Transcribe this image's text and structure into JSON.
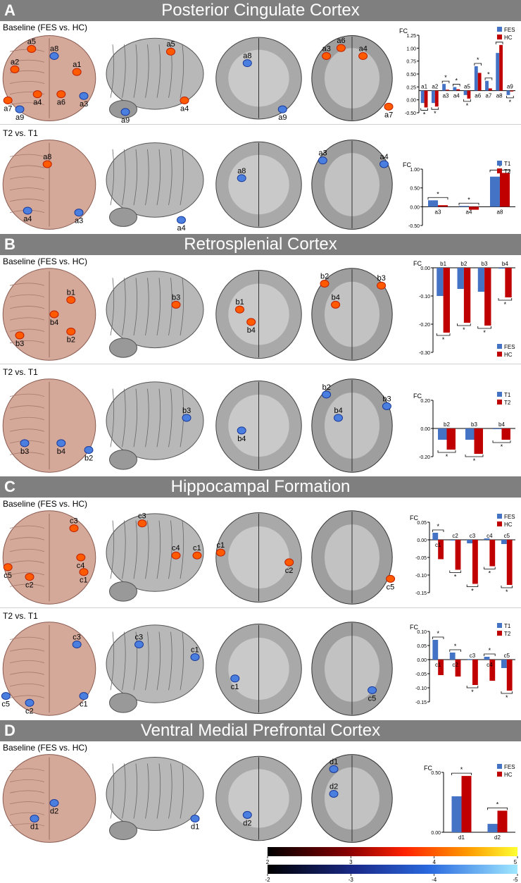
{
  "sections": [
    {
      "letter": "A",
      "title": "Posterior Cingulate Cortex",
      "rows": [
        {
          "label": "Baseline (FES vs. HC)"
        },
        {
          "label": "T2 vs. T1"
        }
      ]
    },
    {
      "letter": "B",
      "title": "Retrosplenial Cortex",
      "rows": [
        {
          "label": "Baseline (FES vs. HC)"
        },
        {
          "label": "T2 vs. T1"
        }
      ]
    },
    {
      "letter": "C",
      "title": "Hippocampal Formation",
      "rows": [
        {
          "label": "Baseline (FES vs. HC)"
        },
        {
          "label": "T2 vs. T1"
        }
      ]
    },
    {
      "letter": "D",
      "title": "Ventral Medial Prefrontal Cortex",
      "rows": [
        {
          "label": "Baseline (FES vs. HC)"
        }
      ]
    }
  ],
  "colors": {
    "blue": "#4472c4",
    "red": "#c00000",
    "header": "#7f7f7f",
    "brain3d": "#d4a99a",
    "warm": "#ff5a00",
    "cold": "#4a7fe0"
  },
  "brain_labels": {
    "A1": [
      [
        "a5",
        "a8",
        "a1",
        "a2",
        "a7",
        "a9",
        "a4",
        "a6",
        "a3"
      ],
      [
        "a5",
        "a4",
        "a9"
      ],
      [
        "a8",
        "a9"
      ],
      [
        "a3",
        "a6",
        "a4",
        "a7"
      ]
    ],
    "A2": [
      [
        "a8",
        "a4",
        "a3"
      ],
      [
        "a4"
      ],
      [
        "a8"
      ],
      [
        "a3",
        "a4"
      ]
    ],
    "B1": [
      [
        "b1",
        "b3",
        "b4",
        "b2"
      ],
      [
        "b3"
      ],
      [
        "b1",
        "b4"
      ],
      [
        "b2",
        "b3",
        "b4"
      ]
    ],
    "B2": [
      [
        "b3",
        "b4",
        "b2"
      ],
      [
        "b3"
      ],
      [
        "b4"
      ],
      [
        "b2",
        "b3",
        "b4"
      ]
    ],
    "C1": [
      [
        "c3",
        "c4",
        "c5",
        "c2",
        "c1"
      ],
      [
        "c3",
        "c4",
        "c1"
      ],
      [
        "c1",
        "c2"
      ],
      [
        "c5"
      ]
    ],
    "C2": [
      [
        "c3",
        "c5",
        "c2",
        "c1"
      ],
      [
        "c3",
        "c1"
      ],
      [
        "c1"
      ],
      [
        "c5"
      ]
    ],
    "D1": [
      [
        "d2",
        "d1"
      ],
      [
        "d1"
      ],
      [
        "d2"
      ],
      [
        "d1",
        "d2"
      ]
    ]
  },
  "chart_data": [
    {
      "id": "A1",
      "type": "bar",
      "ylabel": "FC",
      "categories": [
        "a1",
        "a2",
        "a3",
        "a4",
        "a5",
        "a6",
        "a7",
        "a8",
        "a9"
      ],
      "series": [
        {
          "name": "FES",
          "values": [
            -0.28,
            -0.28,
            0.15,
            0.08,
            -0.1,
            0.55,
            0.22,
            0.85,
            -0.1
          ]
        },
        {
          "name": "HC",
          "values": [
            -0.38,
            -0.36,
            0.02,
            0.03,
            -0.18,
            0.4,
            0.05,
            1.03,
            -0.02
          ]
        }
      ],
      "ylim": [
        -0.5,
        1.25
      ],
      "yticks": [
        "-0.50",
        "0.00",
        "0.25",
        "0.50",
        "0.75",
        "1.00",
        "1.25"
      ],
      "significance": "*",
      "legend": "top-right"
    },
    {
      "id": "A2",
      "type": "bar",
      "ylabel": "FC",
      "categories": [
        "a3",
        "a4",
        "a8"
      ],
      "series": [
        {
          "name": "T1",
          "values": [
            0.17,
            0.02,
            0.8
          ]
        },
        {
          "name": "T2",
          "values": [
            0.04,
            -0.08,
            0.9
          ]
        }
      ],
      "ylim": [
        -0.5,
        1.0
      ],
      "yticks": [
        "-0.50",
        "0.00",
        "0.50",
        "1.00"
      ],
      "significance": "*",
      "legend": "top-right"
    },
    {
      "id": "B1",
      "type": "bar",
      "ylabel": "FC",
      "categories": [
        "b1",
        "b2",
        "b3",
        "b4"
      ],
      "series": [
        {
          "name": "FES",
          "values": [
            -0.1,
            -0.075,
            -0.085,
            -0.003
          ]
        },
        {
          "name": "HC",
          "values": [
            -0.23,
            -0.195,
            -0.205,
            -0.105
          ]
        }
      ],
      "ylim": [
        -0.3,
        0.0
      ],
      "yticks": [
        "-0.30",
        "-0.20",
        "-0.10",
        "0.00"
      ],
      "significance": "*",
      "legend": "bottom-right"
    },
    {
      "id": "B2",
      "type": "bar",
      "ylabel": "FC",
      "categories": [
        "b2",
        "b3",
        "b4"
      ],
      "series": [
        {
          "name": "T1",
          "values": [
            -0.08,
            -0.08,
            -0.005
          ]
        },
        {
          "name": "T2",
          "values": [
            -0.15,
            -0.18,
            -0.08
          ]
        }
      ],
      "ylim": [
        -0.2,
        0.2
      ],
      "yticks": [
        "-0.20",
        "0.00",
        "0.20"
      ],
      "significance": "*",
      "legend": "top-right"
    },
    {
      "id": "C1",
      "type": "bar",
      "ylabel": "FC",
      "categories": [
        "c1",
        "c2",
        "c3",
        "c4",
        "c5"
      ],
      "series": [
        {
          "name": "FES",
          "values": [
            0.02,
            -0.002,
            -0.01,
            0.004,
            -0.012
          ]
        },
        {
          "name": "HC",
          "values": [
            -0.055,
            -0.085,
            -0.125,
            -0.075,
            -0.128
          ]
        }
      ],
      "ylim": [
        -0.15,
        0.05
      ],
      "yticks": [
        "-0.15",
        "-0.10",
        "-0.05",
        "0.00",
        "0.05"
      ],
      "significance": "*",
      "legend": "top-right"
    },
    {
      "id": "C2",
      "type": "bar",
      "ylabel": "FC",
      "categories": [
        "c1",
        "c2",
        "c3",
        "c4",
        "c5"
      ],
      "series": [
        {
          "name": "T1",
          "values": [
            0.07,
            0.025,
            0.002,
            0.01,
            -0.03
          ]
        },
        {
          "name": "T2",
          "values": [
            -0.055,
            -0.06,
            -0.09,
            -0.075,
            -0.11
          ]
        }
      ],
      "ylim": [
        -0.15,
        0.1
      ],
      "yticks": [
        "-0.15",
        "-0.10",
        "-0.05",
        "0.00",
        "0.05",
        "0.10"
      ],
      "significance": "*",
      "legend": "top-right"
    },
    {
      "id": "D1",
      "type": "bar",
      "ylabel": "FC",
      "categories": [
        "d1",
        "d2"
      ],
      "series": [
        {
          "name": "FES",
          "values": [
            0.3,
            0.07
          ]
        },
        {
          "name": "HC",
          "values": [
            0.47,
            0.18
          ]
        }
      ],
      "ylim": [
        0.0,
        0.5
      ],
      "yticks": [
        "0.00",
        "0.50"
      ],
      "significance": "*",
      "legend": "top-right"
    }
  ],
  "colorbars": {
    "warm": {
      "ticks": [
        "2",
        "3",
        "4",
        "5"
      ]
    },
    "cold": {
      "ticks": [
        "-2",
        "-3",
        "-4",
        "-5"
      ]
    }
  }
}
